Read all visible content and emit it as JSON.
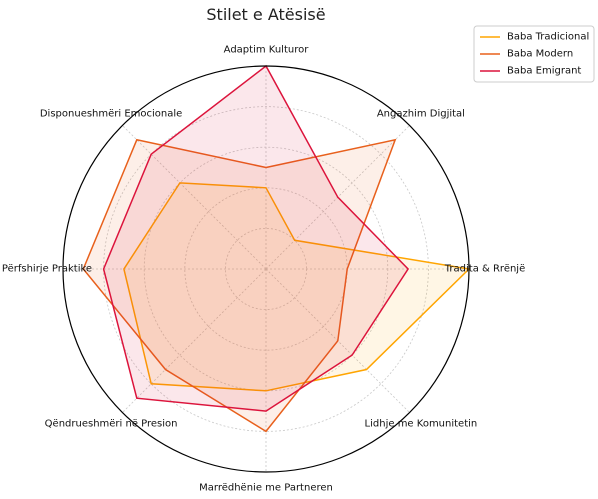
{
  "chart_data": {
    "type": "radar",
    "title": "Stilet e Atësisë",
    "axes": [
      "Adaptim Kulturor",
      "Angazhim Digjital",
      "Tradita & Rrënjë",
      "Lidhje me Komunitetin",
      "Marrëdhënie me Partneren",
      "Qëndrueshmëri në Presion",
      "Përfshirje Praktike",
      "Disponueshmëri Emocionale"
    ],
    "rmax": 10,
    "grid": true,
    "legend_position": "top-right",
    "series": [
      {
        "name": "Baba Tradicional",
        "color": "#FFA500",
        "fill_opacity": 0.1,
        "values": [
          4,
          2,
          10,
          7,
          6,
          8,
          7,
          6
        ]
      },
      {
        "name": "Baba Modern",
        "color": "#E8601C",
        "fill_opacity": 0.1,
        "values": [
          5,
          9,
          4,
          5,
          8,
          7,
          9,
          9
        ]
      },
      {
        "name": "Baba Emigrant",
        "color": "#DC143C",
        "fill_opacity": 0.1,
        "values": [
          10,
          5,
          7,
          6,
          7,
          9,
          8,
          8
        ]
      }
    ]
  }
}
